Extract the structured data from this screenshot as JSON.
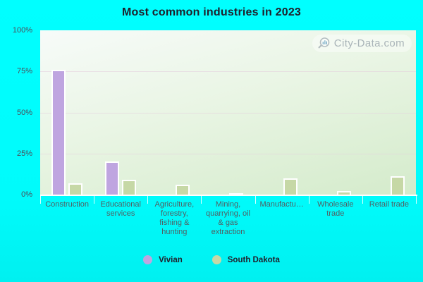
{
  "title": "Most common industries in 2023",
  "watermark": {
    "text": "City-Data.com",
    "icon": "magnifier-chart-icon"
  },
  "colors": {
    "background_cyan": "#00ffff",
    "vivian": "#bfa5e0",
    "south_dakota": "#c6d8a6",
    "plot_gradient_top": "#f7fbf9",
    "plot_gradient_bottom": "#d4ebcb",
    "gridline": "#e4cedc",
    "axis_line": "#ffffff",
    "title_text": "#1f1f2b",
    "axis_label_text": "#4c4c58"
  },
  "y_axis": {
    "tick_labels": [
      "0%",
      "25%",
      "50%",
      "75%",
      "100%"
    ],
    "tick_values": [
      0,
      25,
      50,
      75,
      100
    ]
  },
  "legend": {
    "items": [
      {
        "label": "Vivian"
      },
      {
        "label": "South Dakota"
      }
    ],
    "position": "bottom"
  },
  "chart_data": {
    "type": "bar",
    "title": "Most common industries in 2023",
    "categories": [
      "Construction",
      "Educational services",
      "Agriculture, forestry, fishing & hunting",
      "Mining, quarrying, oil & gas extraction",
      "Manufactu…",
      "Wholesale trade",
      "Retail trade"
    ],
    "series": [
      {
        "name": "Vivian",
        "color": "#bfa5e0",
        "values": [
          76,
          20,
          0,
          0,
          0,
          0,
          0
        ]
      },
      {
        "name": "South Dakota",
        "color": "#c6d8a6",
        "values": [
          7,
          9,
          6,
          1,
          10,
          2,
          11
        ]
      }
    ],
    "xlabel": "",
    "ylabel": "",
    "ylim": [
      0,
      100
    ],
    "grid": "horizontal-25-50-75",
    "legend_position": "bottom"
  }
}
